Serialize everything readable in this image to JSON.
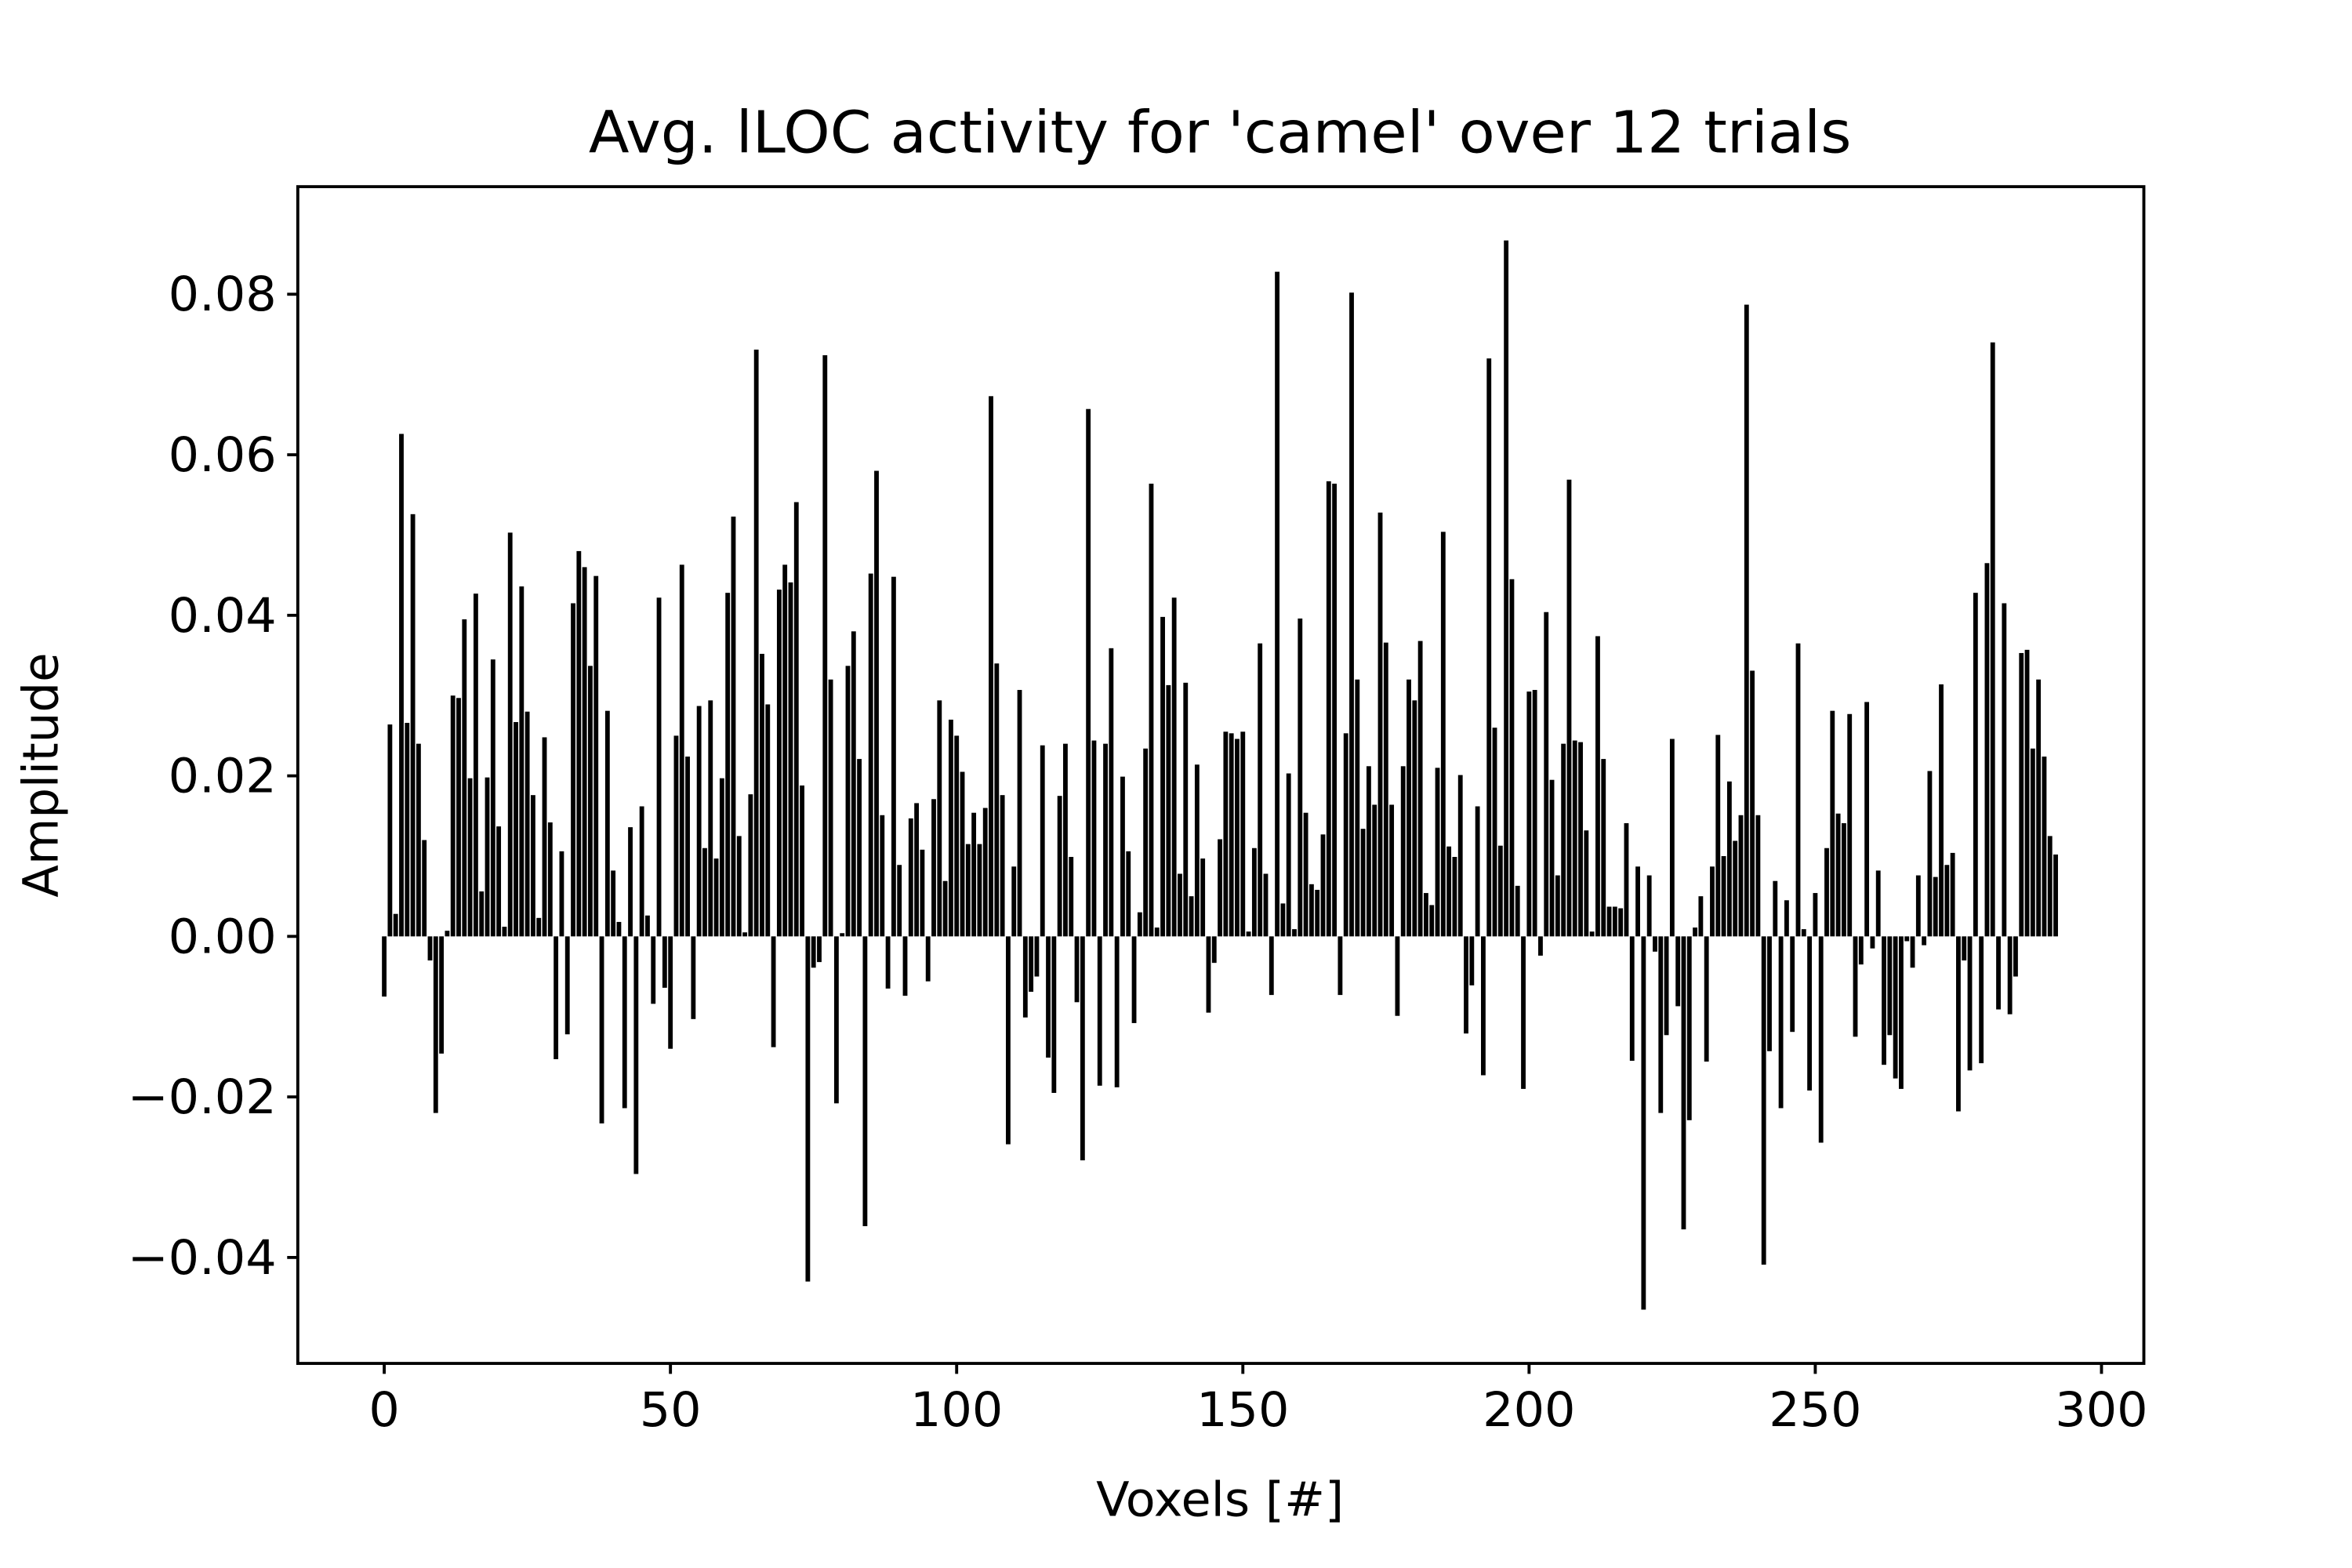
{
  "chart_data": {
    "type": "bar",
    "title": "Avg. lLOC activity for 'camel' over 12 trials",
    "xlabel": "Voxels [#]",
    "ylabel": "Amplitude",
    "color": "#000000",
    "xlim": [
      -15.1,
      307.4
    ],
    "ylim": [
      -0.0532,
      0.0934
    ],
    "xticks": [
      0,
      50,
      100,
      150,
      200,
      250,
      300
    ],
    "yticks": [
      {
        "value": -0.04,
        "label": "−0.04"
      },
      {
        "value": -0.02,
        "label": "−0.02"
      },
      {
        "value": 0,
        "label": "0.00"
      },
      0.02,
      0.04,
      0.06,
      0.08
    ],
    "x": [
      0,
      1,
      2,
      3,
      4,
      5,
      6,
      7,
      8,
      9,
      10,
      11,
      12,
      13,
      14,
      15,
      16,
      17,
      18,
      19,
      20,
      21,
      22,
      23,
      24,
      25,
      26,
      27,
      28,
      29,
      30,
      31,
      32,
      33,
      34,
      35,
      36,
      37,
      38,
      39,
      40,
      41,
      42,
      43,
      44,
      45,
      46,
      47,
      48,
      49,
      50,
      51,
      52,
      53,
      54,
      55,
      56,
      57,
      58,
      59,
      60,
      61,
      62,
      63,
      64,
      65,
      66,
      67,
      68,
      69,
      70,
      71,
      72,
      73,
      74,
      75,
      76,
      77,
      78,
      79,
      80,
      81,
      82,
      83,
      84,
      85,
      86,
      87,
      88,
      89,
      90,
      91,
      92,
      93,
      94,
      95,
      96,
      97,
      98,
      99,
      100,
      101,
      102,
      103,
      104,
      105,
      106,
      107,
      108,
      109,
      110,
      111,
      112,
      113,
      114,
      115,
      116,
      117,
      118,
      119,
      120,
      121,
      122,
      123,
      124,
      125,
      126,
      127,
      128,
      129,
      130,
      131,
      132,
      133,
      134,
      135,
      136,
      137,
      138,
      139,
      140,
      141,
      142,
      143,
      144,
      145,
      146,
      147,
      148,
      149,
      150,
      151,
      152,
      153,
      154,
      155,
      156,
      157,
      158,
      159,
      160,
      161,
      162,
      163,
      164,
      165,
      166,
      167,
      168,
      169,
      170,
      171,
      172,
      173,
      174,
      175,
      176,
      177,
      178,
      179,
      180,
      181,
      182,
      183,
      184,
      185,
      186,
      187,
      188,
      189,
      190,
      191,
      192,
      193,
      194,
      195,
      196,
      197,
      198,
      199,
      200,
      201,
      202,
      203,
      204,
      205,
      206,
      207,
      208,
      209,
      210,
      211,
      212,
      213,
      214,
      215,
      216,
      217,
      218,
      219,
      220,
      221,
      222,
      223,
      224,
      225,
      226,
      227,
      228,
      229,
      230,
      231,
      232,
      233,
      234,
      235,
      236,
      237,
      238,
      239,
      240,
      241,
      242,
      243,
      244,
      245,
      246,
      247,
      248,
      249,
      250,
      251,
      252,
      253,
      254,
      255,
      256,
      257,
      258,
      259,
      260,
      261,
      262,
      263,
      264,
      265,
      266,
      267,
      268,
      269,
      270,
      271,
      272,
      273,
      274,
      275,
      276,
      277,
      278,
      279,
      280,
      281,
      282,
      283,
      284,
      285,
      286,
      287,
      288,
      289,
      290,
      291,
      292
    ],
    "values": [
      -0.0075,
      0.0264,
      0.0028,
      0.0626,
      0.0266,
      0.0526,
      0.024,
      0.012,
      -0.003,
      -0.022,
      -0.0146,
      0.0007,
      0.03,
      0.0297,
      0.0395,
      0.0197,
      0.0427,
      0.0056,
      0.0198,
      0.0345,
      0.0137,
      0.0012,
      0.0503,
      0.0267,
      0.0436,
      0.028,
      0.0176,
      0.0023,
      0.0248,
      0.0142,
      -0.0153,
      0.0106,
      -0.0122,
      0.0415,
      0.048,
      0.046,
      0.0337,
      0.0449,
      -0.0233,
      0.0281,
      0.0082,
      0.0018,
      -0.0214,
      0.0136,
      -0.0296,
      0.0162,
      0.0026,
      -0.0084,
      0.0422,
      -0.0064,
      -0.014,
      0.025,
      0.0463,
      0.0224,
      -0.0103,
      0.0287,
      0.011,
      0.0294,
      0.0097,
      0.0197,
      0.0428,
      0.0523,
      0.0125,
      0.0005,
      0.0177,
      0.0731,
      0.0352,
      0.0289,
      -0.0138,
      0.0432,
      0.0463,
      0.0441,
      0.0541,
      0.0188,
      -0.043,
      -0.0039,
      -0.0032,
      0.0724,
      0.032,
      -0.0208,
      0.0004,
      0.0337,
      0.038,
      0.0221,
      -0.0361,
      0.0452,
      0.058,
      0.0151,
      -0.0065,
      0.0448,
      0.0089,
      -0.0074,
      0.0147,
      0.0166,
      0.0108,
      -0.0056,
      0.0171,
      0.0294,
      0.0069,
      0.027,
      0.025,
      0.0205,
      0.0115,
      0.0154,
      0.0115,
      0.016,
      0.0673,
      0.034,
      0.0176,
      -0.0259,
      0.0087,
      0.0307,
      -0.0101,
      -0.0069,
      -0.005,
      0.0238,
      -0.0151,
      -0.0195,
      0.0175,
      0.024,
      0.0099,
      -0.0082,
      -0.0279,
      0.0657,
      0.0244,
      -0.0186,
      0.024,
      0.0359,
      -0.0188,
      0.0199,
      0.0106,
      -0.0108,
      0.003,
      0.0234,
      0.0564,
      0.0011,
      0.0398,
      0.0313,
      0.0422,
      0.0078,
      0.0316,
      0.005,
      0.0214,
      0.0097,
      -0.0095,
      -0.0033,
      0.0121,
      0.0255,
      0.0253,
      0.0246,
      0.0255,
      0.0006,
      0.011,
      0.0365,
      0.0078,
      -0.0073,
      0.0828,
      0.0041,
      0.0203,
      0.0009,
      0.0396,
      0.0154,
      0.0065,
      0.0058,
      0.0127,
      0.0567,
      0.0564,
      -0.0073,
      0.0253,
      0.0802,
      0.032,
      0.0134,
      0.0212,
      0.0164,
      0.0528,
      0.0366,
      0.0164,
      -0.0099,
      0.0212,
      0.032,
      0.0294,
      0.0368,
      0.0054,
      0.0039,
      0.021,
      0.0504,
      0.0112,
      0.0099,
      0.0201,
      -0.0121,
      -0.0061,
      0.0162,
      -0.0173,
      0.072,
      0.026,
      0.0113,
      0.0867,
      0.0445,
      0.0063,
      -0.019,
      0.0305,
      0.0307,
      -0.0024,
      0.0404,
      0.0195,
      0.0076,
      0.024,
      0.0569,
      0.0244,
      0.0242,
      0.0132,
      0.0006,
      0.0374,
      0.0221,
      0.0037,
      0.0037,
      0.0035,
      0.0141,
      -0.0155,
      0.0087,
      -0.0465,
      0.0076,
      -0.0019,
      -0.022,
      -0.0123,
      0.0246,
      -0.0087,
      -0.0365,
      -0.0229,
      0.0011,
      0.005,
      -0.0156,
      0.0087,
      0.0251,
      0.01,
      0.0193,
      0.0119,
      0.0151,
      0.0787,
      0.0331,
      0.0151,
      -0.0409,
      -0.0143,
      0.0069,
      -0.0214,
      0.0045,
      -0.0119,
      0.0365,
      0.0009,
      -0.0192,
      0.0054,
      -0.0257,
      0.011,
      0.0281,
      0.0153,
      0.0141,
      0.0277,
      -0.0125,
      -0.0035,
      0.0292,
      -0.0015,
      0.0082,
      -0.016,
      -0.0123,
      -0.0177,
      -0.019,
      -0.0006,
      -0.0039,
      0.0076,
      -0.0011,
      0.0206,
      0.0074,
      0.0314,
      0.0089,
      0.0104,
      -0.0218,
      -0.003,
      -0.0167,
      0.0428,
      -0.0158,
      0.0465,
      0.074,
      -0.0091,
      0.0415,
      -0.0097,
      -0.005,
      0.0353,
      0.0357,
      0.0234,
      0.032,
      0.0224,
      0.0125,
      0.0102
    ]
  }
}
